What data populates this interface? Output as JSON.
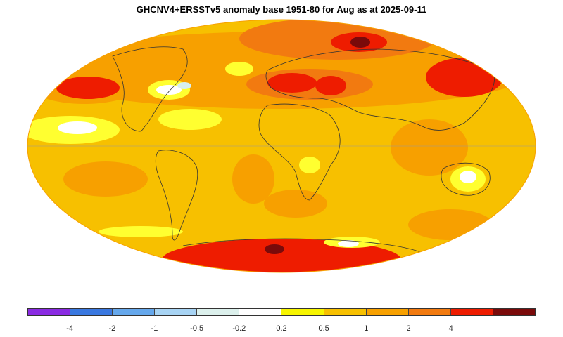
{
  "map": {
    "title": "GHCNV4+ERSSTv5 anomaly base 1951-80 for Aug as at 2025-09-11",
    "projection": "Mollweide",
    "colors": {
      "ocean_warm": "#f7c000",
      "moderate": "#f7a000",
      "strong": "#f27a10",
      "very_strong": "#ee1c00",
      "extreme": "#7a0a0a",
      "near_zero": "#ffffff",
      "slight_warm": "#ffff30",
      "slight_cool": "#d8f0f0"
    }
  },
  "legend": {
    "segment_colors": [
      "#8a2be2",
      "#3a78e0",
      "#66a8ec",
      "#a8d4f4",
      "#dcf0ec",
      "#ffffff",
      "#f7f500",
      "#f7c000",
      "#f7a000",
      "#f27a10",
      "#ee1c00",
      "#7a0a0a"
    ],
    "tick_labels": [
      "-4",
      "-2",
      "-1",
      "-0.5",
      "-0.2",
      "0.2",
      "0.5",
      "1",
      "2",
      "4"
    ]
  }
}
